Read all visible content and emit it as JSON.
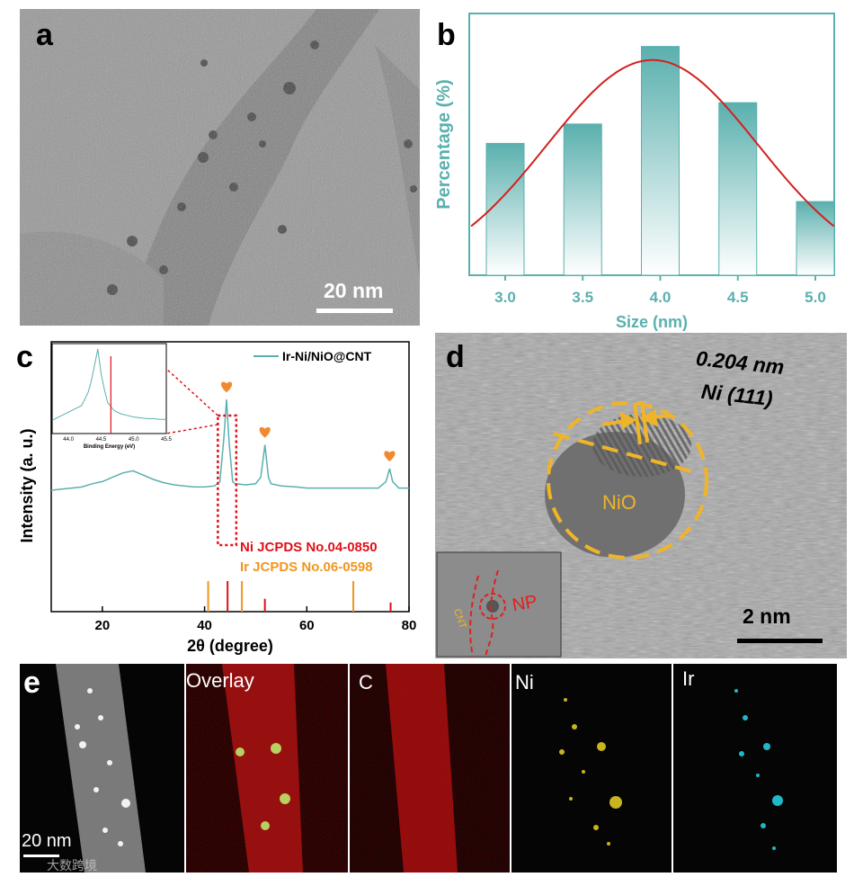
{
  "panels": {
    "a": {
      "label": "a",
      "scale_bar": "20 nm"
    },
    "b": {
      "label": "b"
    },
    "c": {
      "label": "c"
    },
    "d": {
      "label": "d",
      "lattice_spacing": "0.204 nm",
      "lattice_plane": "Ni (111)",
      "region_label": "NiO",
      "scale_bar": "2 nm",
      "inset_np_label": "NP",
      "inset_cnt_label": "CNT"
    },
    "e": {
      "label": "e",
      "scale_bar": "20 nm",
      "maps": [
        "Overlay",
        "C",
        "Ni",
        "Ir"
      ],
      "watermark": "大数跨境"
    }
  },
  "chart_data": [
    {
      "type": "bar",
      "panel": "b",
      "categories": [
        "3.0",
        "3.5",
        "4.0",
        "4.5",
        "5.0"
      ],
      "values": [
        68,
        78,
        118,
        89,
        38
      ],
      "ylim": [
        0,
        135
      ],
      "xlabel": "Size (nm)",
      "ylabel": "Percentage (%)",
      "fit_curve": {
        "type": "gaussian",
        "center": 3.95,
        "sigma": 0.68,
        "peak": 111,
        "color": "#d41f1f"
      },
      "bar_color": "#5ab0ae",
      "axis_color": "#5ab0ae"
    },
    {
      "type": "line",
      "panel": "c",
      "xlabel": "2θ (degree)",
      "ylabel": "Intensity (a. u.)",
      "xlim": [
        10,
        80
      ],
      "xticks": [
        20,
        40,
        60,
        80
      ],
      "ylim": [
        0,
        100
      ],
      "series": [
        {
          "name": "Ir-Ni/NiO@CNT",
          "color": "#5ab0ae",
          "x": [
            10,
            12,
            14,
            16,
            18,
            20,
            22,
            24,
            26,
            28,
            30,
            32,
            34,
            36,
            38,
            40,
            42,
            43,
            43.8,
            44.3,
            44.8,
            45.5,
            46,
            48,
            50,
            51,
            51.8,
            52.5,
            53,
            55,
            58,
            60,
            62,
            64,
            66,
            68,
            70,
            72,
            74,
            75.5,
            76.2,
            76.8,
            78,
            80
          ],
          "y": [
            30,
            30.5,
            31,
            31.5,
            33,
            34,
            36,
            38,
            39,
            37,
            35,
            33.5,
            32.5,
            32,
            31.5,
            31.5,
            32,
            34,
            55,
            72,
            52,
            34,
            33,
            32.5,
            33,
            36,
            51,
            36,
            33,
            32,
            31.5,
            31,
            31,
            31,
            31,
            31,
            31,
            31,
            31,
            34,
            40,
            34,
            31,
            31
          ]
        }
      ],
      "markers": [
        {
          "x": 44.3,
          "symbol": "heart",
          "color": "#f08a30"
        },
        {
          "x": 51.8,
          "symbol": "heart",
          "color": "#f08a30"
        },
        {
          "x": 76.2,
          "symbol": "heart",
          "color": "#f08a30"
        }
      ],
      "reference_patterns": [
        {
          "name": "Ni JCPDS No.04-0850",
          "color": "#e0101a",
          "peaks": [
            44.5,
            51.8,
            76.4
          ],
          "heights": [
            100,
            42,
            30
          ]
        },
        {
          "name": "Ir JCPDS No.06-0598",
          "color": "#f0961e",
          "peaks": [
            40.7,
            47.3,
            69.1
          ],
          "heights": [
            100,
            100,
            100
          ]
        }
      ],
      "inset": {
        "xlabel": "Binding Energy (eV)",
        "xlim": [
          43.75,
          45.5
        ],
        "xticks": [
          44.0,
          44.5,
          45.0,
          45.5
        ],
        "line_color": "#5ab0ae",
        "marker_line": {
          "x": 44.65,
          "color": "#e0101a"
        },
        "x": [
          43.75,
          43.9,
          44.0,
          44.1,
          44.2,
          44.3,
          44.35,
          44.4,
          44.45,
          44.5,
          44.55,
          44.6,
          44.7,
          44.8,
          44.9,
          45.0,
          45.1,
          45.2,
          45.3,
          45.4,
          45.5
        ],
        "y": [
          12,
          18,
          22,
          26,
          30,
          46,
          60,
          80,
          100,
          70,
          50,
          34,
          24,
          20,
          18,
          16,
          15,
          14,
          14,
          13,
          13
        ]
      }
    }
  ]
}
